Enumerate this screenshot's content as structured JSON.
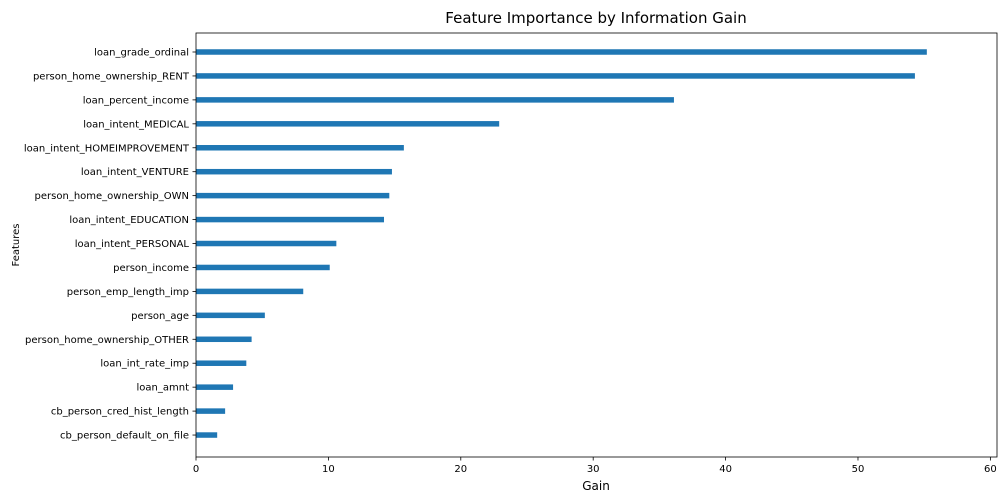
{
  "chart_data": {
    "type": "bar",
    "orientation": "horizontal",
    "title": "Feature Importance by Information Gain",
    "xlabel": "Gain",
    "ylabel": "Features",
    "xlim": [
      0,
      60.5
    ],
    "xticks": [
      0,
      10,
      20,
      30,
      40,
      50,
      60
    ],
    "grid": false,
    "bar_color": "#1f77b4",
    "categories": [
      "loan_grade_ordinal",
      "person_home_ownership_RENT",
      "loan_percent_income",
      "loan_intent_MEDICAL",
      "loan_intent_HOMEIMPROVEMENT",
      "loan_intent_VENTURE",
      "person_home_ownership_OWN",
      "loan_intent_EDUCATION",
      "loan_intent_PERSONAL",
      "person_income",
      "person_emp_length_imp",
      "person_age",
      "person_home_ownership_OTHER",
      "loan_int_rate_imp",
      "loan_amnt",
      "cb_person_cred_hist_length",
      "cb_person_default_on_file"
    ],
    "values": [
      55.2,
      54.3,
      36.1,
      22.9,
      15.7,
      14.8,
      14.6,
      14.2,
      10.6,
      10.1,
      8.1,
      5.2,
      4.2,
      3.8,
      2.8,
      2.2,
      1.6
    ]
  }
}
